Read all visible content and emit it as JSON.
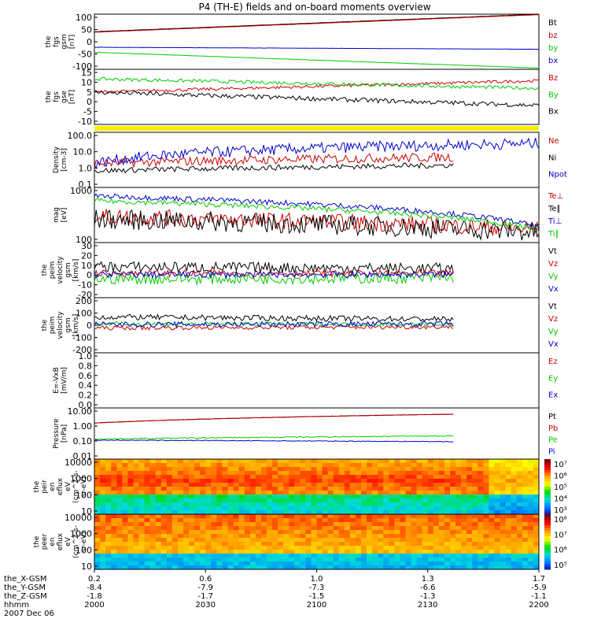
{
  "title": "P4 (TH-E) fields and on-board moments overview",
  "colors": {
    "black": "#000000",
    "red": "#cc0000",
    "green": "#00cc00",
    "blue": "#0000cc",
    "yellow": "#ffee00"
  },
  "chart_data": [
    {
      "id": "p1",
      "type": "line",
      "ylabel": [
        "the",
        "fgs",
        "gsm",
        "[nT]"
      ],
      "yticks": [
        "100",
        "50",
        "0",
        "-50",
        "-100"
      ],
      "ylim": [
        -110,
        110
      ],
      "series": [
        {
          "name": "Bt",
          "color": "black",
          "start": 40,
          "end": 110,
          "noise": 0.3
        },
        {
          "name": "bz",
          "color": "red",
          "start": 38,
          "end": 108,
          "noise": 0.3
        },
        {
          "name": "by",
          "color": "green",
          "start": -42,
          "end": -105,
          "noise": 0.4
        },
        {
          "name": "bx",
          "color": "blue",
          "start": -22,
          "end": -30,
          "noise": 0.3
        }
      ]
    },
    {
      "id": "p2",
      "type": "line",
      "ylabel": [
        "the",
        "fgs",
        "gse",
        "[nT]"
      ],
      "yticks": [
        "15",
        "10",
        "5",
        "0",
        "-5",
        "-10"
      ],
      "ylim": [
        -14,
        15
      ],
      "series": [
        {
          "name": "Bz",
          "color": "red",
          "start": 3,
          "end": 9,
          "noise": 0.8
        },
        {
          "name": "By",
          "color": "green",
          "start": 10,
          "end": 5,
          "noise": 0.9
        },
        {
          "name": "Bx",
          "color": "black",
          "start": 3,
          "end": -4,
          "noise": 1.2
        }
      ]
    },
    {
      "id": "p3",
      "type": "line",
      "log": true,
      "ylabel": [
        "Density",
        "[cm-3]"
      ],
      "yticks": [
        "100.0",
        "10.0",
        "1.0",
        "0.1"
      ],
      "ylim": [
        0.1,
        100
      ],
      "series": [
        {
          "name": "Ne",
          "color": "red",
          "start": 2,
          "end": 5,
          "noise": 0.25,
          "stop": 0.81
        },
        {
          "name": "Ni",
          "color": "black",
          "start": 0.8,
          "end": 1.8,
          "noise": 0.15,
          "stop": 0.81
        },
        {
          "name": "Npot",
          "color": "blue",
          "start": 2,
          "end": 25,
          "noise": 0.3
        }
      ]
    },
    {
      "id": "p4",
      "type": "line",
      "log": true,
      "ylabel": [
        "mag",
        "[eV]"
      ],
      "yticks": [
        "1000",
        "100"
      ],
      "ylim": [
        100,
        4500
      ],
      "series": [
        {
          "name": "Te⊥",
          "color": "red",
          "start": 600,
          "end": 250,
          "noise": 0.25
        },
        {
          "name": "Te∥",
          "color": "black",
          "start": 500,
          "end": 200,
          "noise": 0.3
        },
        {
          "name": "Ti⊥",
          "color": "blue",
          "start": 2500,
          "end": 300,
          "noise": 0.08
        },
        {
          "name": "Ti∥",
          "color": "green",
          "start": 1800,
          "end": 250,
          "noise": 0.08
        }
      ]
    },
    {
      "id": "p5",
      "type": "line",
      "ylabel": [
        "the",
        "peim",
        "velocity",
        "gsm",
        "[km/s]"
      ],
      "yticks": [
        "30",
        "20",
        "10",
        "0",
        "-10",
        "-20"
      ],
      "ylim": [
        -20,
        30
      ],
      "series": [
        {
          "name": "Vt",
          "color": "black",
          "start": 8,
          "end": 6,
          "noise": 5,
          "stop": 0.81
        },
        {
          "name": "Vz",
          "color": "red",
          "start": 2,
          "end": 2,
          "noise": 3,
          "stop": 0.81
        },
        {
          "name": "Vy",
          "color": "green",
          "start": -3,
          "end": -2,
          "noise": 5,
          "stop": 0.81
        },
        {
          "name": "Vx",
          "color": "blue",
          "start": 1,
          "end": 1,
          "noise": 3,
          "stop": 0.81
        }
      ]
    },
    {
      "id": "p6",
      "type": "line",
      "ylabel": [
        "the",
        "peim",
        "velocity",
        "gsm",
        "[km/s]"
      ],
      "yticks": [
        "200",
        "100",
        "0",
        "-100",
        "-200"
      ],
      "ylim": [
        -200,
        200
      ],
      "series": [
        {
          "name": "Vt",
          "color": "black",
          "start": 60,
          "end": 40,
          "noise": 20,
          "stop": 0.81
        },
        {
          "name": "Vz",
          "color": "red",
          "start": -20,
          "end": -10,
          "noise": 15,
          "stop": 0.81
        },
        {
          "name": "Vy",
          "color": "green",
          "start": 10,
          "end": 5,
          "noise": 15,
          "stop": 0.81
        },
        {
          "name": "Vx",
          "color": "blue",
          "start": 5,
          "end": 10,
          "noise": 20,
          "stop": 0.81
        }
      ]
    },
    {
      "id": "p7",
      "type": "line",
      "ylabel": [
        "E=-VxB",
        "[mV/m]"
      ],
      "yticks": [
        "1.0",
        "0.8",
        "0.6",
        "0.4",
        "0.2",
        "0.0"
      ],
      "ylim": [
        0,
        1
      ],
      "series": [
        {
          "name": "Ez",
          "color": "red"
        },
        {
          "name": "Ey",
          "color": "green"
        },
        {
          "name": "Ex",
          "color": "blue"
        }
      ]
    },
    {
      "id": "p8",
      "type": "line",
      "log": true,
      "ylabel": [
        "Pressure",
        "[nPa]"
      ],
      "yticks": [
        "10.00",
        "1.00",
        "0.10",
        "0.01"
      ],
      "ylim": [
        0.01,
        10
      ],
      "series": [
        {
          "name": "Pt",
          "color": "black",
          "start": 1.3,
          "end": 5,
          "noise": 0.01,
          "stop": 0.81
        },
        {
          "name": "Pb",
          "color": "red",
          "start": 1.3,
          "end": 5,
          "noise": 0.01,
          "stop": 0.81
        },
        {
          "name": "Pe",
          "color": "green",
          "start": 0.15,
          "end": 0.25,
          "noise": 0.03,
          "stop": 0.81
        },
        {
          "name": "Pi",
          "color": "blue",
          "start": 0.13,
          "end": 0.1,
          "noise": 0.02,
          "stop": 0.81
        }
      ]
    },
    {
      "id": "p9",
      "type": "heatmap",
      "ylabel": [
        "the",
        "peir",
        "en",
        "eflux",
        "eV",
        "(cm^2-s-",
        "sr-eV)"
      ],
      "yticks": [
        "10000",
        "1000",
        "100",
        "10"
      ],
      "colorbar": {
        "ticks": [
          "10⁷",
          "10⁶",
          "10⁵",
          "10⁴",
          "10³"
        ]
      }
    },
    {
      "id": "p10",
      "type": "heatmap",
      "ylabel": [
        "the",
        "peer",
        "en",
        "eflux",
        "eV",
        "(cm^2-s-",
        "sr-eV)"
      ],
      "yticks": [
        "10000",
        "1000",
        "100",
        "10"
      ],
      "colorbar": {
        "ticks": [
          "10⁸",
          "10⁷",
          "10⁶",
          "10⁵"
        ]
      }
    }
  ],
  "xaxis": {
    "rows": [
      {
        "label": "the_X-GSM",
        "values": [
          "0.2",
          "0.6",
          "1.0",
          "1.3",
          "1.7"
        ]
      },
      {
        "label": "the_Y-GSM",
        "values": [
          "-8.4",
          "-7.9",
          "-7.3",
          "-6.6",
          "-5.9"
        ]
      },
      {
        "label": "the_Z-GSM",
        "values": [
          "-1.8",
          "-1.7",
          "-1.5",
          "-1.3",
          "-1.1"
        ]
      },
      {
        "label": "hhmm",
        "values": [
          "2000",
          "2030",
          "2100",
          "2130",
          "2200"
        ]
      }
    ],
    "date": "2007 Dec 06"
  }
}
